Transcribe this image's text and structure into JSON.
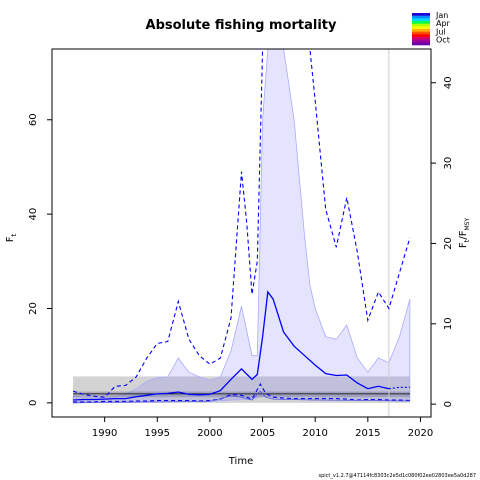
{
  "chart_data": {
    "type": "line",
    "title": "Absolute fishing mortality",
    "xlabel": "Time",
    "ylabel_left": "F",
    "ylabel_left_sub": "t",
    "ylabel_right": "F",
    "ylabel_right_sub": "t",
    "ylabel_right_after": "/F",
    "ylabel_right_sub2": "MSY",
    "xlim": [
      1985,
      2021
    ],
    "ylim_left": [
      -3,
      75
    ],
    "ylim_right": [
      -1.6,
      44.2
    ],
    "xticks": [
      1990,
      1995,
      2000,
      2005,
      2010,
      2015,
      2020
    ],
    "yticks_left": [
      0,
      20,
      40,
      60
    ],
    "yticks_right": [
      0,
      10,
      20,
      30,
      40
    ],
    "vline_x": 2017,
    "grid": false,
    "legend_position": "top-right",
    "legend_labels": [
      "Jan",
      "Apr",
      "Jul",
      "Oct"
    ],
    "legend_colors": [
      "#2400d8",
      "#0090ff",
      "#00d8ff",
      "#00ff50",
      "#b0ff00",
      "#ffff00",
      "#ffb000",
      "#ff5000",
      "#ff0000",
      "#d0006e",
      "#a0009a",
      "#6a00a8"
    ],
    "fmsy_band": {
      "x": [
        1987,
        2019
      ],
      "lower": 0.0,
      "upper": 5.6,
      "center": 1.9,
      "center_lower": 1.2,
      "center_upper": 2.4
    },
    "series": [
      {
        "role": "median",
        "x": [
          1987,
          1988,
          1989,
          1990,
          1991,
          1992,
          1993,
          1994,
          1995,
          1996,
          1997,
          1998,
          1999,
          2000,
          2001,
          2002,
          2003,
          2004,
          2004.5,
          2005,
          2005.5,
          2006,
          2007,
          2008,
          2009,
          2010,
          2011,
          2012,
          2013,
          2014,
          2015,
          2016,
          2017,
          2018
        ],
        "values": [
          0.6,
          0.7,
          0.7,
          0.8,
          0.9,
          0.9,
          1.3,
          1.6,
          1.9,
          2.0,
          2.3,
          1.8,
          1.7,
          1.8,
          2.6,
          5.0,
          7.2,
          5.0,
          6.0,
          14.0,
          23.5,
          22.0,
          15.0,
          12.0,
          10.0,
          8.0,
          6.2,
          5.8,
          5.9,
          4.2,
          3.0,
          3.5,
          3.0,
          3.3
        ]
      },
      {
        "role": "ci_upper",
        "x": [
          1987,
          1988,
          1989,
          1990,
          1991,
          1992,
          1993,
          1994,
          1995,
          1996,
          1997,
          1998,
          1999,
          2000,
          2001,
          2002,
          2003,
          2003.5,
          2004,
          2004.5,
          2005,
          2005.5,
          2006,
          2007,
          2007.5,
          2008,
          2009,
          2009.5,
          2010,
          2011,
          2012,
          2013,
          2014,
          2015,
          2016,
          2017,
          2018,
          2019
        ],
        "values": [
          2.5,
          1.8,
          1.4,
          1.2,
          3.5,
          3.7,
          5.5,
          9.5,
          12.6,
          13.0,
          21.5,
          13.5,
          10.0,
          8.2,
          9.5,
          18.0,
          49.0,
          38.0,
          23.0,
          30.0,
          75.0,
          75.0,
          75.0,
          75.0,
          75.0,
          75.0,
          75.0,
          75.0,
          64.0,
          41.0,
          33.0,
          43.5,
          32.0,
          17.5,
          23.5,
          20.0,
          27.5,
          35.0
        ]
      },
      {
        "role": "ci_lower",
        "x": [
          1987,
          1988,
          1989,
          1990,
          1991,
          1992,
          1993,
          1994,
          1995,
          1996,
          1997,
          1998,
          1999,
          2000,
          2001,
          2002,
          2003,
          2004,
          2004.8,
          2005.3,
          2006,
          2007,
          2008,
          2009,
          2010,
          2011,
          2012,
          2013,
          2014,
          2015,
          2016,
          2017,
          2018,
          2019
        ],
        "values": [
          0.2,
          0.2,
          0.2,
          0.3,
          0.3,
          0.3,
          0.4,
          0.4,
          0.5,
          0.5,
          0.5,
          0.5,
          0.4,
          0.5,
          0.8,
          1.8,
          1.6,
          0.8,
          4.0,
          2.0,
          1.2,
          1.0,
          0.9,
          0.9,
          0.9,
          0.9,
          0.9,
          0.8,
          0.6,
          0.7,
          0.7,
          0.6,
          0.6,
          0.5
        ]
      },
      {
        "role": "shade_upper",
        "x": [
          1987,
          1988,
          1989,
          1990,
          1991,
          1992,
          1993,
          1994,
          1995,
          1996,
          1997,
          1998,
          1999,
          2000,
          2001,
          2002,
          2003,
          2004,
          2004.5,
          2005,
          2005.5,
          2006,
          2007,
          2008,
          2009,
          2009.5,
          2010,
          2011,
          2012,
          2013,
          2014,
          2015,
          2016,
          2017,
          2018,
          2019
        ],
        "values": [
          1.4,
          1.2,
          1.1,
          1.1,
          1.3,
          1.8,
          3.0,
          4.5,
          5.4,
          5.5,
          9.5,
          6.5,
          5.5,
          4.8,
          5.5,
          11.0,
          20.5,
          10.0,
          10.0,
          60.0,
          75.0,
          75.0,
          75.0,
          60.0,
          35.0,
          25.0,
          20.0,
          14.0,
          13.5,
          16.5,
          9.5,
          6.5,
          9.5,
          8.5,
          14.0,
          22.0
        ]
      },
      {
        "role": "shade_lower",
        "x": [
          1987,
          1990,
          1995,
          2000,
          2002,
          2004,
          2005,
          2006,
          2010,
          2015,
          2019
        ],
        "values": [
          0.0,
          0.1,
          0.2,
          0.3,
          0.6,
          0.7,
          1.5,
          0.8,
          0.6,
          0.5,
          0.4
        ]
      },
      {
        "role": "ci_lower_solid",
        "x": [
          1987,
          1990,
          1995,
          2000,
          2002,
          2003,
          2004,
          2004.8,
          2005.3,
          2006,
          2010,
          2015,
          2019
        ],
        "values": [
          0.0,
          0.1,
          0.2,
          0.3,
          1.5,
          1.2,
          0.6,
          2.5,
          1.2,
          0.8,
          0.6,
          0.5,
          0.4
        ]
      }
    ],
    "footnote": "spict_v1.2.7@47114fc8303c2e5d1c080f02ee02803ee5a0d287"
  }
}
